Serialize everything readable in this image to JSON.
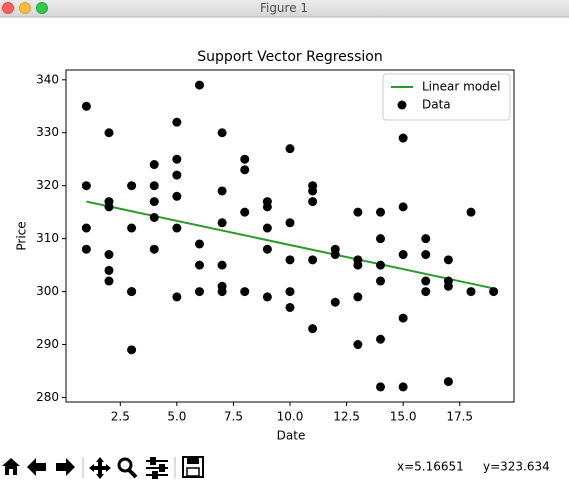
{
  "window": {
    "title": "Figure 1"
  },
  "status": {
    "x": "x=5.16651",
    "y": "y=323.634"
  },
  "chart_data": {
    "type": "scatter",
    "title": "Support Vector Regression",
    "xlabel": "Date",
    "ylabel": "Price",
    "xlim": [
      0.1,
      19.9
    ],
    "ylim": [
      279.15,
      341.85
    ],
    "xticks": [
      2.5,
      {
        "value": 5,
        "label": "5.0"
      },
      7.5,
      {
        "value": 10,
        "label": "10.0"
      },
      12.5,
      {
        "value": 15,
        "label": "15.0"
      },
      17.5
    ],
    "yticks": [
      280,
      290,
      300,
      310,
      320,
      330,
      340
    ],
    "legend": "upper right",
    "series": [
      {
        "name": "Linear model",
        "type": "line",
        "color": "#2a9a2a",
        "x": [
          1,
          19
        ],
        "values": [
          317,
          300.6
        ]
      },
      {
        "name": "Data",
        "type": "scatter",
        "color": "#000000",
        "x": [
          1,
          1,
          1,
          1,
          2,
          2,
          2,
          2,
          2,
          2,
          3,
          3,
          3,
          3,
          3,
          4,
          4,
          4,
          4,
          4,
          5,
          5,
          5,
          5,
          5,
          5,
          6,
          6,
          6,
          6,
          7,
          7,
          7,
          7,
          7,
          7,
          8,
          8,
          8,
          8,
          9,
          9,
          9,
          9,
          9,
          10,
          10,
          10,
          10,
          10,
          11,
          11,
          11,
          11,
          11,
          12,
          12,
          12,
          13,
          13,
          13,
          13,
          13,
          14,
          14,
          14,
          14,
          14,
          14,
          15,
          15,
          15,
          15,
          15,
          16,
          16,
          16,
          16,
          17,
          17,
          17,
          17,
          18,
          18,
          19
        ],
        "values": [
          335,
          320,
          312,
          308,
          330,
          317,
          316,
          307,
          304,
          302,
          320,
          312,
          300,
          300,
          289,
          324,
          320,
          317,
          314,
          308,
          332,
          325,
          322,
          318,
          312,
          299,
          339,
          309,
          305,
          300,
          330,
          319,
          313,
          305,
          301,
          300,
          325,
          323,
          315,
          300,
          317,
          316,
          312,
          308,
          299,
          327,
          313,
          306,
          300,
          297,
          320,
          319,
          317,
          306,
          293,
          308,
          307,
          298,
          315,
          306,
          305,
          299,
          290,
          315,
          310,
          305,
          302,
          291,
          282,
          329,
          316,
          307,
          295,
          282,
          310,
          307,
          302,
          300,
          306,
          302,
          301,
          283,
          315,
          300,
          300
        ]
      }
    ]
  }
}
